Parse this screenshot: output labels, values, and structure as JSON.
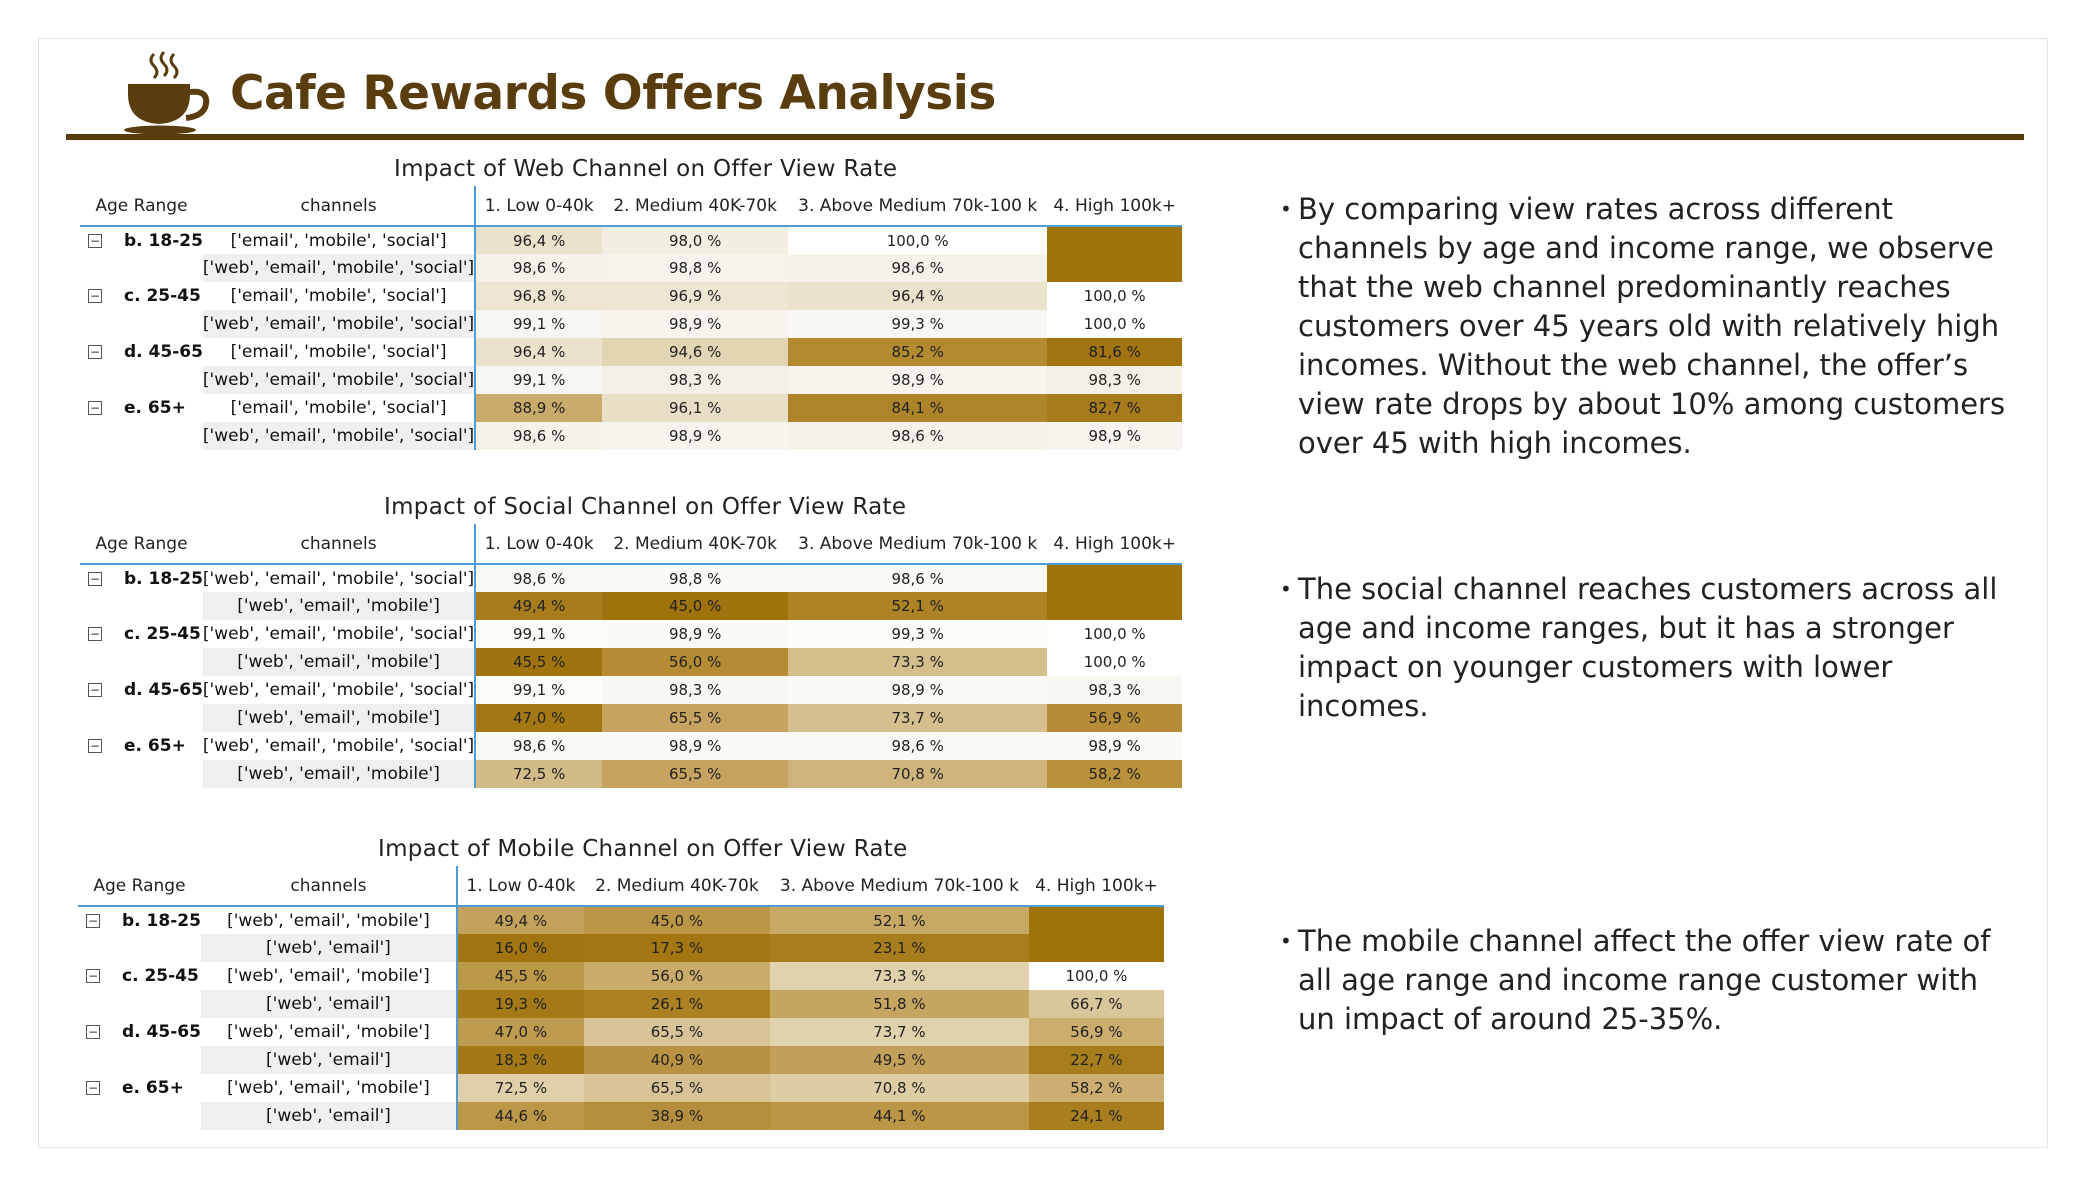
{
  "title": "Cafe Rewards Offers Analysis",
  "colors": {
    "brand": "#5a3d0e",
    "accent_line": "#4f9bd6"
  },
  "columns": {
    "age": "Age Range",
    "channels": "channels",
    "c1": "1. Low 0-40k",
    "c2": "2. Medium 40K-70k",
    "c3": "3. Above Medium 70k-100 k",
    "c4": "4. High 100k+"
  },
  "web": {
    "title": "Impact of Web Channel on Offer View Rate",
    "rows": [
      {
        "age": "b. 18-25",
        "channel": "['email', 'mobile', 'social']",
        "v": [
          "96,4 %",
          "98,0 %",
          "100,0 %",
          ""
        ],
        "bg": [
          "#ebe2cc",
          "#f3eee2",
          "#ffffff",
          "#a0720c"
        ]
      },
      {
        "age": "",
        "channel": "['web', 'email', 'mobile', 'social']",
        "v": [
          "98,6 %",
          "98,8 %",
          "98,6 %",
          ""
        ],
        "bg": [
          "#f5f2ea",
          "#f6f3ec",
          "#f5f2ea",
          "#a0720c"
        ]
      },
      {
        "age": "c. 25-45",
        "channel": "['email', 'mobile', 'social']",
        "v": [
          "96,8 %",
          "96,9 %",
          "96,4 %",
          "100,0 %"
        ],
        "bg": [
          "#ede5d2",
          "#ede6d3",
          "#ebe2cc",
          "#ffffff"
        ]
      },
      {
        "age": "",
        "channel": "['web', 'email', 'mobile', 'social']",
        "v": [
          "99,1 %",
          "98,9 %",
          "99,3 %",
          "100,0 %"
        ],
        "bg": [
          "#f8f6f0",
          "#f6f4ed",
          "#f9f7f2",
          "#ffffff"
        ]
      },
      {
        "age": "d. 45-65",
        "channel": "['email', 'mobile', 'social']",
        "v": [
          "96,4 %",
          "94,6 %",
          "85,2 %",
          "81,6 %"
        ],
        "bg": [
          "#ebe2cc",
          "#e2d5b4",
          "#b48a30",
          "#a17410"
        ]
      },
      {
        "age": "",
        "channel": "['web', 'email', 'mobile', 'social']",
        "v": [
          "99,1 %",
          "98,3 %",
          "98,9 %",
          "98,3 %"
        ],
        "bg": [
          "#f8f6f0",
          "#f3efe4",
          "#f6f4ed",
          "#f3efe4"
        ]
      },
      {
        "age": "e. 65+",
        "channel": "['email', 'mobile', 'social']",
        "v": [
          "88,9 %",
          "96,1 %",
          "84,1 %",
          "82,7 %"
        ],
        "bg": [
          "#c9ab6b",
          "#e9dfc6",
          "#ae842a",
          "#a77b1c"
        ]
      },
      {
        "age": "",
        "channel": "['web', 'email', 'mobile', 'social']",
        "v": [
          "98,6 %",
          "98,9 %",
          "98,6 %",
          "98,9 %"
        ],
        "bg": [
          "#f5f2ea",
          "#f6f4ed",
          "#f5f2ea",
          "#f6f4ed"
        ]
      }
    ]
  },
  "social": {
    "title": "Impact of Social Channel on Offer View Rate",
    "rows": [
      {
        "age": "b. 18-25",
        "channel": "['web', 'email', 'mobile', 'social']",
        "v": [
          "98,6 %",
          "98,8 %",
          "98,6 %",
          ""
        ],
        "bg": [
          "#fbf9f4",
          "#fbfaf5",
          "#fbf9f4",
          "#a0720c"
        ]
      },
      {
        "age": "",
        "channel": "['web', 'email', 'mobile']",
        "v": [
          "49,4 %",
          "45,0 %",
          "52,1 %",
          ""
        ],
        "bg": [
          "#a87c1c",
          "#a0720c",
          "#ad8326",
          "#a0720c"
        ]
      },
      {
        "age": "c. 25-45",
        "channel": "['web', 'email', 'mobile', 'social']",
        "v": [
          "99,1 %",
          "98,9 %",
          "99,3 %",
          "100,0 %"
        ],
        "bg": [
          "#fcfbf7",
          "#fbfaf6",
          "#fdfcf9",
          "#ffffff"
        ]
      },
      {
        "age": "",
        "channel": "['web', 'email', 'mobile']",
        "v": [
          "45,5 %",
          "56,0 %",
          "73,3 %",
          "100,0 %"
        ],
        "bg": [
          "#a1730e",
          "#b58b33",
          "#d4be8c",
          "#ffffff"
        ]
      },
      {
        "age": "d. 45-65",
        "channel": "['web', 'email', 'mobile', 'social']",
        "v": [
          "99,1 %",
          "98,3 %",
          "98,9 %",
          "98,3 %"
        ],
        "bg": [
          "#fcfbf7",
          "#f9f7f1",
          "#fbfaf6",
          "#f9f7f1"
        ]
      },
      {
        "age": "",
        "channel": "['web', 'email', 'mobile']",
        "v": [
          "47,0 %",
          "65,5 %",
          "73,7 %",
          "56,9 %"
        ],
        "bg": [
          "#a47713",
          "#c6a45f",
          "#d5bf8e",
          "#b68d36"
        ]
      },
      {
        "age": "e. 65+",
        "channel": "['web', 'email', 'mobile', 'social']",
        "v": [
          "98,6 %",
          "98,9 %",
          "98,6 %",
          "98,9 %"
        ],
        "bg": [
          "#fbf9f4",
          "#fbfaf6",
          "#fbf9f4",
          "#fbfaf6"
        ]
      },
      {
        "age": "",
        "channel": "['web', 'email', 'mobile']",
        "v": [
          "72,5 %",
          "65,5 %",
          "70,8 %",
          "58,2 %"
        ],
        "bg": [
          "#d2bb87",
          "#c6a45f",
          "#cfb57d",
          "#b9913b"
        ]
      }
    ]
  },
  "mobile": {
    "title": "Impact of Mobile Channel on Offer View Rate",
    "rows": [
      {
        "age": "b. 18-25",
        "channel": "['web', 'email', 'mobile']",
        "v": [
          "49,4 %",
          "45,0 %",
          "52,1 %",
          ""
        ],
        "bg": [
          "#c3a25c",
          "#bb9646",
          "#c7a865",
          "#a0720c"
        ]
      },
      {
        "age": "",
        "channel": "['web', 'email']",
        "v": [
          "16,0 %",
          "17,3 %",
          "23,1 %",
          ""
        ],
        "bg": [
          "#a1740f",
          "#a37612",
          "#a87d1d",
          "#a0720c"
        ]
      },
      {
        "age": "c. 25-45",
        "channel": "['web', 'email', 'mobile']",
        "v": [
          "45,5 %",
          "56,0 %",
          "73,3 %",
          "100,0 %"
        ],
        "bg": [
          "#bc9849",
          "#caab6a",
          "#e1d1ad",
          "#ffffff"
        ]
      },
      {
        "age": "",
        "channel": "['web', 'email']",
        "v": [
          "19,3 %",
          "26,1 %",
          "51,8 %",
          "66,7 %"
        ],
        "bg": [
          "#a57915",
          "#ab8122",
          "#c5a661",
          "#d9c69a"
        ]
      },
      {
        "age": "d. 45-65",
        "channel": "['web', 'email', 'mobile']",
        "v": [
          "47,0 %",
          "65,5 %",
          "73,7 %",
          "56,9 %"
        ],
        "bg": [
          "#be9b4e",
          "#d7c396",
          "#e1d2ae",
          "#cbad6d"
        ]
      },
      {
        "age": "",
        "channel": "['web', 'email']",
        "v": [
          "18,3 %",
          "40,9 %",
          "49,5 %",
          "22,7 %"
        ],
        "bg": [
          "#a47814",
          "#b89142",
          "#c2a05a",
          "#a87d1c"
        ]
      },
      {
        "age": "e. 65+",
        "channel": "['web', 'email', 'mobile']",
        "v": [
          "72,5 %",
          "65,5 %",
          "70,8 %",
          "58,2 %"
        ],
        "bg": [
          "#e0cfaa",
          "#d7c396",
          "#ddcca4",
          "#ccaf70"
        ]
      },
      {
        "age": "",
        "channel": "['web', 'email']",
        "v": [
          "44,6 %",
          "38,9 %",
          "44,1 %",
          "24,1 %"
        ],
        "bg": [
          "#bb9747",
          "#b48e3d",
          "#ba9646",
          "#a97e1e"
        ]
      }
    ]
  },
  "notes": [
    "By comparing view rates across different channels by age and income range, we observe that the web channel predominantly reaches customers over 45 years old with relatively high incomes. Without the web channel, the offer’s view rate drops by about 10% among customers over 45 with high incomes.",
    "The social channel reaches customers across all age and income ranges, but it has a stronger impact on younger customers with lower incomes.",
    "The mobile channel affect the offer  view rate of all age range and income range customer with un impact of around 25-35%."
  ]
}
